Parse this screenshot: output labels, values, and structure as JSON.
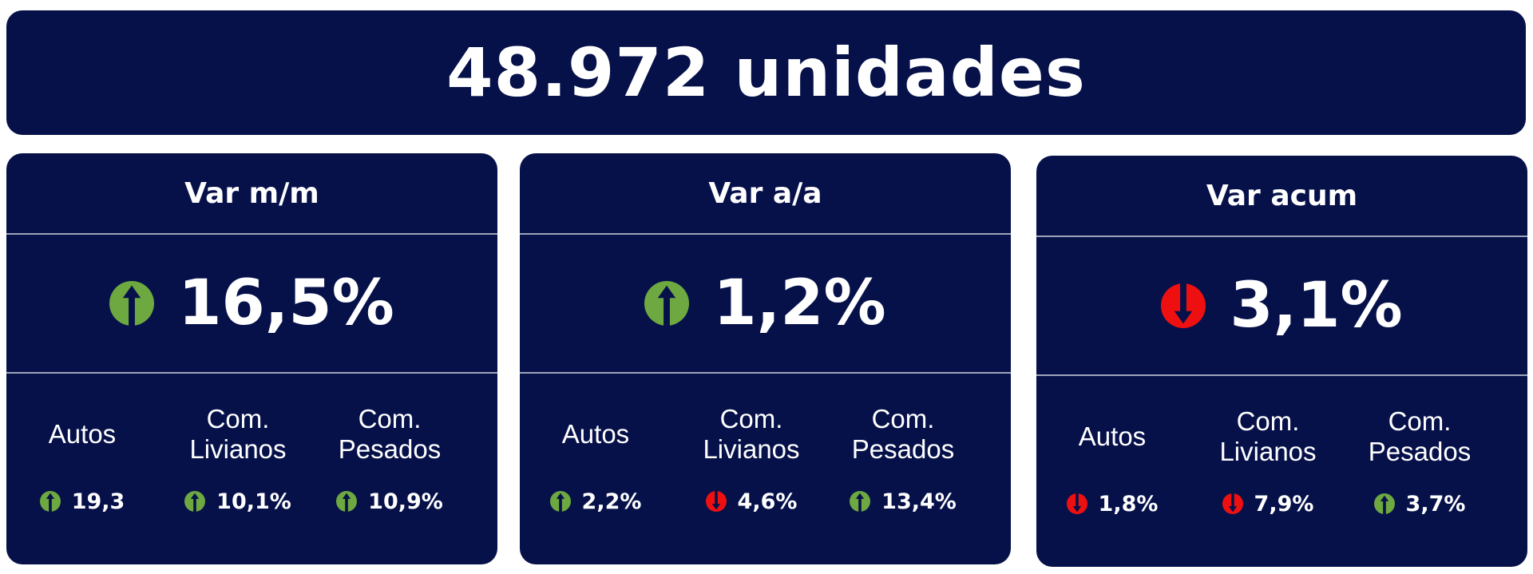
{
  "header": {
    "title": "48.972 unidades"
  },
  "colors": {
    "panel_bg": "#06114a",
    "up": "#6ea840",
    "down": "#ee1010",
    "text": "#ffffff"
  },
  "cards": [
    {
      "title": "Var m/m",
      "direction": "up",
      "value": "16,5%",
      "subs": [
        {
          "label": "Autos",
          "direction": "up",
          "value": "19,3"
        },
        {
          "label": "Com.\nLivianos",
          "direction": "up",
          "value": "10,1%"
        },
        {
          "label": "Com.\nPesados",
          "direction": "up",
          "value": "10,9%"
        }
      ]
    },
    {
      "title": "Var a/a",
      "direction": "up",
      "value": "1,2%",
      "subs": [
        {
          "label": "Autos",
          "direction": "up",
          "value": "2,2%"
        },
        {
          "label": "Com.\nLivianos",
          "direction": "down",
          "value": "4,6%"
        },
        {
          "label": "Com.\nPesados",
          "direction": "up",
          "value": "13,4%"
        }
      ]
    },
    {
      "title": "Var acum",
      "direction": "down",
      "value": "3,1%",
      "subs": [
        {
          "label": "Autos",
          "direction": "down",
          "value": "1,8%"
        },
        {
          "label": "Com.\nLivianos",
          "direction": "down",
          "value": "7,9%"
        },
        {
          "label": "Com.\nPesados",
          "direction": "up",
          "value": "3,7%"
        }
      ]
    }
  ]
}
